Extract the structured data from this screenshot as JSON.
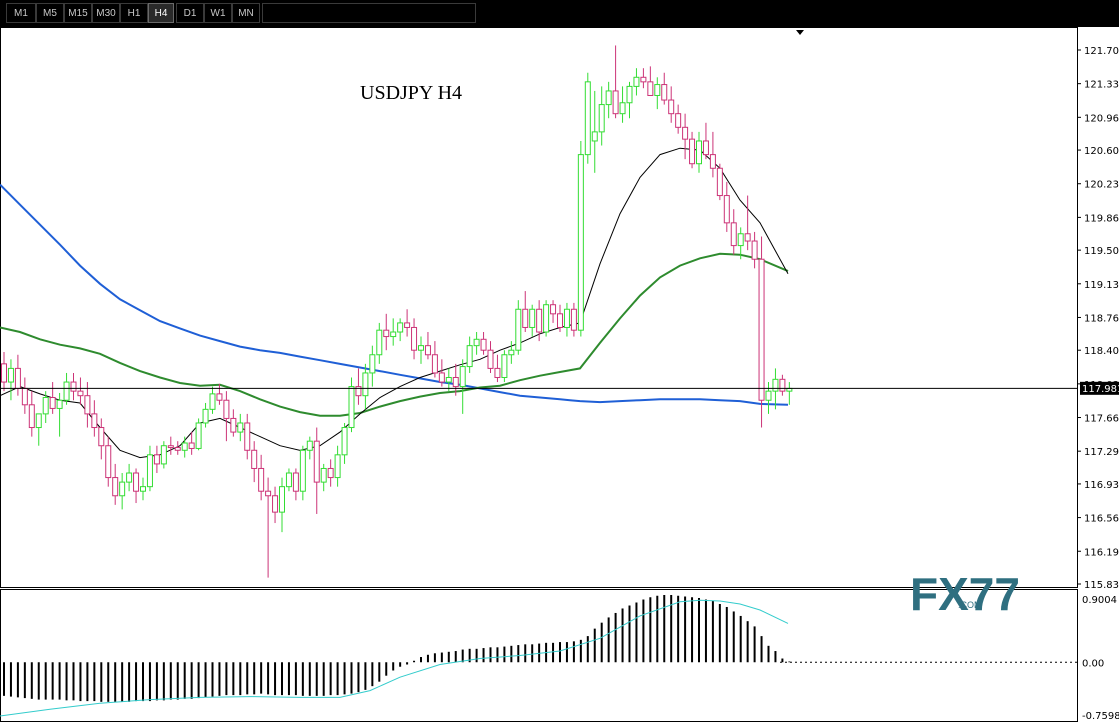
{
  "toolbar": {
    "timeframes": [
      "M1",
      "M5",
      "M15",
      "M30",
      "H1",
      "H4",
      "D1",
      "W1",
      "MN"
    ],
    "active": "H4"
  },
  "chart_data": {
    "type": "candlestick",
    "title": "USDJPY  H4",
    "symbol": "USDJPY",
    "timeframe": "H4",
    "current_price": 117.981,
    "price_label": "117.981",
    "ylim": [
      115.83,
      121.7
    ],
    "y_ticks": [
      "121.700",
      "121.330",
      "120.960",
      "120.600",
      "120.230",
      "119.860",
      "119.500",
      "119.130",
      "118.760",
      "118.400",
      "118.030",
      "117.660",
      "117.290",
      "116.930",
      "116.560",
      "116.190",
      "115.830"
    ],
    "colors": {
      "bull": "#33dd33",
      "bear": "#cc3377",
      "ma_slow": "#1f5fd6",
      "ma_mid": "#2e8b2e",
      "ma_fast": "#000000",
      "signal": "#33cccc",
      "hist": "#000000"
    },
    "candles": [
      [
        118.25,
        118.38,
        117.95,
        118.05
      ],
      [
        118.05,
        118.3,
        117.85,
        118.2
      ],
      [
        118.2,
        118.35,
        117.9,
        117.98
      ],
      [
        117.98,
        118.1,
        117.7,
        117.8
      ],
      [
        117.8,
        117.95,
        117.45,
        117.55
      ],
      [
        117.55,
        117.7,
        117.35,
        117.7
      ],
      [
        117.7,
        117.95,
        117.6,
        117.88
      ],
      [
        117.88,
        118.05,
        117.7,
        117.76
      ],
      [
        117.76,
        117.93,
        117.45,
        117.85
      ],
      [
        117.85,
        118.15,
        117.8,
        118.05
      ],
      [
        118.05,
        118.15,
        117.85,
        117.95
      ],
      [
        117.95,
        118.1,
        117.8,
        117.9
      ],
      [
        117.9,
        118.05,
        117.55,
        117.7
      ],
      [
        117.7,
        117.85,
        117.45,
        117.55
      ],
      [
        117.55,
        117.65,
        117.2,
        117.35
      ],
      [
        117.35,
        117.45,
        116.9,
        117.0
      ],
      [
        117.0,
        117.15,
        116.7,
        116.8
      ],
      [
        116.8,
        117.05,
        116.65,
        116.95
      ],
      [
        116.95,
        117.15,
        116.85,
        117.05
      ],
      [
        117.05,
        117.1,
        116.72,
        116.85
      ],
      [
        116.85,
        117.0,
        116.75,
        116.9
      ],
      [
        116.9,
        117.35,
        116.85,
        117.25
      ],
      [
        117.25,
        117.35,
        117.05,
        117.15
      ],
      [
        117.15,
        117.4,
        117.1,
        117.35
      ],
      [
        117.35,
        117.45,
        117.25,
        117.33
      ],
      [
        117.33,
        117.4,
        117.25,
        117.3
      ],
      [
        117.3,
        117.45,
        117.22,
        117.38
      ],
      [
        117.38,
        117.5,
        117.25,
        117.32
      ],
      [
        117.32,
        117.65,
        117.3,
        117.6
      ],
      [
        117.6,
        117.82,
        117.55,
        117.75
      ],
      [
        117.75,
        118.0,
        117.7,
        117.92
      ],
      [
        117.92,
        118.03,
        117.8,
        117.85
      ],
      [
        117.85,
        117.95,
        117.4,
        117.65
      ],
      [
        117.65,
        117.75,
        117.45,
        117.5
      ],
      [
        117.5,
        117.7,
        117.4,
        117.6
      ],
      [
        117.6,
        117.7,
        117.2,
        117.3
      ],
      [
        117.3,
        117.4,
        116.95,
        117.1
      ],
      [
        117.1,
        117.25,
        116.75,
        116.85
      ],
      [
        116.85,
        117.0,
        115.9,
        116.8
      ],
      [
        116.8,
        116.9,
        116.5,
        116.62
      ],
      [
        116.62,
        117.0,
        116.4,
        116.9
      ],
      [
        116.9,
        117.1,
        116.85,
        117.05
      ],
      [
        117.05,
        117.1,
        116.75,
        116.85
      ],
      [
        116.85,
        117.35,
        116.75,
        117.3
      ],
      [
        117.3,
        117.45,
        117.2,
        117.4
      ],
      [
        117.4,
        117.55,
        116.6,
        116.95
      ],
      [
        116.95,
        117.15,
        116.85,
        117.1
      ],
      [
        117.1,
        117.2,
        116.9,
        117.0
      ],
      [
        117.0,
        117.35,
        116.9,
        117.25
      ],
      [
        117.25,
        117.6,
        117.15,
        117.55
      ],
      [
        117.55,
        118.1,
        117.5,
        118.0
      ],
      [
        118.0,
        118.2,
        117.8,
        117.9
      ],
      [
        117.9,
        118.25,
        117.75,
        118.15
      ],
      [
        118.15,
        118.45,
        118.0,
        118.35
      ],
      [
        118.35,
        118.7,
        118.25,
        118.62
      ],
      [
        118.62,
        118.8,
        118.4,
        118.55
      ],
      [
        118.55,
        118.75,
        118.45,
        118.6
      ],
      [
        118.6,
        118.75,
        118.5,
        118.7
      ],
      [
        118.7,
        118.85,
        118.55,
        118.65
      ],
      [
        118.65,
        118.75,
        118.3,
        118.4
      ],
      [
        118.4,
        118.55,
        118.25,
        118.45
      ],
      [
        118.45,
        118.6,
        118.3,
        118.35
      ],
      [
        118.35,
        118.5,
        118.1,
        118.15
      ],
      [
        118.15,
        118.3,
        118.0,
        118.05
      ],
      [
        118.05,
        118.2,
        117.95,
        118.1
      ],
      [
        118.1,
        118.25,
        117.9,
        118.0
      ],
      [
        118.0,
        118.3,
        117.7,
        118.22
      ],
      [
        118.22,
        118.55,
        118.15,
        118.45
      ],
      [
        118.45,
        118.6,
        118.35,
        118.52
      ],
      [
        118.52,
        118.6,
        118.35,
        118.4
      ],
      [
        118.4,
        118.5,
        118.15,
        118.2
      ],
      [
        118.2,
        118.35,
        118.05,
        118.1
      ],
      [
        118.1,
        118.4,
        118.05,
        118.35
      ],
      [
        118.35,
        118.5,
        118.25,
        118.4
      ],
      [
        118.4,
        118.95,
        118.35,
        118.85
      ],
      [
        118.85,
        119.05,
        118.6,
        118.65
      ],
      [
        118.65,
        118.9,
        118.55,
        118.85
      ],
      [
        118.85,
        118.95,
        118.5,
        118.6
      ],
      [
        118.6,
        118.95,
        118.55,
        118.9
      ],
      [
        118.9,
        118.95,
        118.7,
        118.8
      ],
      [
        118.8,
        118.9,
        118.6,
        118.65
      ],
      [
        118.65,
        118.92,
        118.55,
        118.85
      ],
      [
        118.85,
        118.92,
        118.55,
        118.62
      ],
      [
        118.62,
        120.7,
        118.55,
        120.55
      ],
      [
        120.55,
        121.45,
        120.45,
        121.35
      ],
      [
        120.7,
        121.25,
        120.35,
        120.8
      ],
      [
        120.8,
        121.3,
        120.65,
        121.1
      ],
      [
        121.1,
        121.35,
        120.95,
        121.25
      ],
      [
        121.25,
        121.75,
        120.95,
        121.0
      ],
      [
        121.0,
        121.3,
        120.9,
        121.12
      ],
      [
        121.12,
        121.35,
        120.95,
        121.3
      ],
      [
        121.3,
        121.5,
        121.2,
        121.4
      ],
      [
        121.4,
        121.5,
        121.28,
        121.35
      ],
      [
        121.35,
        121.52,
        121.2,
        121.2
      ],
      [
        121.2,
        121.4,
        121.05,
        121.32
      ],
      [
        121.32,
        121.45,
        121.1,
        121.15
      ],
      [
        121.15,
        121.3,
        120.9,
        121.0
      ],
      [
        121.0,
        121.1,
        120.78,
        120.85
      ],
      [
        120.85,
        121.0,
        120.5,
        120.72
      ],
      [
        120.72,
        120.8,
        120.4,
        120.45
      ],
      [
        120.45,
        120.8,
        120.35,
        120.7
      ],
      [
        120.7,
        120.9,
        120.5,
        120.55
      ],
      [
        120.55,
        120.8,
        120.3,
        120.4
      ],
      [
        120.4,
        120.45,
        120.05,
        120.1
      ],
      [
        120.1,
        120.25,
        119.7,
        119.8
      ],
      [
        119.8,
        119.95,
        119.45,
        119.55
      ],
      [
        119.55,
        119.75,
        119.4,
        119.68
      ],
      [
        119.68,
        120.1,
        119.5,
        119.6
      ],
      [
        119.6,
        119.7,
        119.3,
        119.4
      ],
      [
        119.4,
        119.65,
        117.55,
        117.85
      ],
      [
        117.85,
        118.05,
        117.7,
        117.95
      ],
      [
        117.95,
        118.2,
        117.75,
        118.08
      ],
      [
        118.08,
        118.13,
        117.9,
        117.95
      ],
      [
        117.95,
        118.05,
        117.8,
        117.98
      ]
    ],
    "ma_slow": [
      [
        0,
        120.22
      ],
      [
        20,
        120.0
      ],
      [
        40,
        119.78
      ],
      [
        60,
        119.56
      ],
      [
        80,
        119.33
      ],
      [
        100,
        119.13
      ],
      [
        120,
        118.96
      ],
      [
        140,
        118.84
      ],
      [
        160,
        118.72
      ],
      [
        180,
        118.64
      ],
      [
        200,
        118.56
      ],
      [
        220,
        118.5
      ],
      [
        240,
        118.44
      ],
      [
        260,
        118.4
      ],
      [
        280,
        118.37
      ],
      [
        300,
        118.33
      ],
      [
        320,
        118.29
      ],
      [
        340,
        118.25
      ],
      [
        360,
        118.21
      ],
      [
        380,
        118.17
      ],
      [
        400,
        118.13
      ],
      [
        420,
        118.09
      ],
      [
        440,
        118.05
      ],
      [
        460,
        118.02
      ],
      [
        480,
        117.98
      ],
      [
        500,
        117.94
      ],
      [
        520,
        117.9
      ],
      [
        540,
        117.88
      ],
      [
        560,
        117.86
      ],
      [
        570,
        117.85
      ],
      [
        580,
        117.84
      ],
      [
        600,
        117.83
      ],
      [
        620,
        117.84
      ],
      [
        640,
        117.85
      ],
      [
        660,
        117.86
      ],
      [
        680,
        117.86
      ],
      [
        700,
        117.86
      ],
      [
        720,
        117.85
      ],
      [
        740,
        117.84
      ],
      [
        760,
        117.81
      ],
      [
        788,
        117.8
      ]
    ],
    "ma_mid": [
      [
        0,
        118.65
      ],
      [
        20,
        118.6
      ],
      [
        40,
        118.52
      ],
      [
        60,
        118.46
      ],
      [
        80,
        118.42
      ],
      [
        100,
        118.36
      ],
      [
        120,
        118.26
      ],
      [
        140,
        118.17
      ],
      [
        160,
        118.1
      ],
      [
        180,
        118.04
      ],
      [
        200,
        118.01
      ],
      [
        220,
        118.02
      ],
      [
        240,
        117.95
      ],
      [
        260,
        117.86
      ],
      [
        280,
        117.78
      ],
      [
        300,
        117.72
      ],
      [
        320,
        117.68
      ],
      [
        340,
        117.68
      ],
      [
        360,
        117.71
      ],
      [
        380,
        117.78
      ],
      [
        400,
        117.84
      ],
      [
        420,
        117.89
      ],
      [
        440,
        117.93
      ],
      [
        460,
        117.95
      ],
      [
        480,
        117.99
      ],
      [
        500,
        118.01
      ],
      [
        520,
        118.07
      ],
      [
        540,
        118.12
      ],
      [
        560,
        118.16
      ],
      [
        580,
        118.2
      ],
      [
        600,
        118.48
      ],
      [
        620,
        118.75
      ],
      [
        640,
        119.0
      ],
      [
        660,
        119.2
      ],
      [
        680,
        119.33
      ],
      [
        700,
        119.41
      ],
      [
        720,
        119.46
      ],
      [
        740,
        119.45
      ],
      [
        760,
        119.4
      ],
      [
        788,
        119.27
      ]
    ],
    "ma_fast": [
      [
        0,
        117.9
      ],
      [
        20,
        118.0
      ],
      [
        40,
        117.92
      ],
      [
        60,
        117.85
      ],
      [
        80,
        117.82
      ],
      [
        100,
        117.55
      ],
      [
        120,
        117.3
      ],
      [
        140,
        117.22
      ],
      [
        160,
        117.25
      ],
      [
        180,
        117.35
      ],
      [
        200,
        117.6
      ],
      [
        220,
        117.65
      ],
      [
        240,
        117.55
      ],
      [
        260,
        117.45
      ],
      [
        280,
        117.35
      ],
      [
        300,
        117.3
      ],
      [
        320,
        117.35
      ],
      [
        340,
        117.5
      ],
      [
        360,
        117.7
      ],
      [
        380,
        117.88
      ],
      [
        400,
        118.0
      ],
      [
        420,
        118.1
      ],
      [
        440,
        118.17
      ],
      [
        460,
        118.24
      ],
      [
        480,
        118.3
      ],
      [
        500,
        118.4
      ],
      [
        520,
        118.48
      ],
      [
        540,
        118.58
      ],
      [
        560,
        118.65
      ],
      [
        580,
        118.7
      ],
      [
        600,
        119.35
      ],
      [
        620,
        119.9
      ],
      [
        640,
        120.3
      ],
      [
        660,
        120.55
      ],
      [
        680,
        120.62
      ],
      [
        700,
        120.6
      ],
      [
        720,
        120.4
      ],
      [
        740,
        120.05
      ],
      [
        760,
        119.8
      ],
      [
        788,
        119.24
      ]
    ]
  },
  "indicator": {
    "ylim": [
      -0.7598,
      0.9004
    ],
    "ticks": [
      "0.9004",
      "0.00",
      "-0.7598"
    ],
    "histogram": [
      -0.45,
      -0.46,
      -0.47,
      -0.48,
      -0.49,
      -0.5,
      -0.5,
      -0.5,
      -0.5,
      -0.51,
      -0.51,
      -0.52,
      -0.52,
      -0.52,
      -0.53,
      -0.53,
      -0.53,
      -0.53,
      -0.53,
      -0.52,
      -0.52,
      -0.52,
      -0.51,
      -0.51,
      -0.5,
      -0.5,
      -0.49,
      -0.49,
      -0.48,
      -0.47,
      -0.46,
      -0.45,
      -0.44,
      -0.44,
      -0.44,
      -0.43,
      -0.43,
      -0.42,
      -0.43,
      -0.44,
      -0.44,
      -0.44,
      -0.44,
      -0.45,
      -0.45,
      -0.45,
      -0.45,
      -0.44,
      -0.44,
      -0.43,
      -0.42,
      -0.4,
      -0.37,
      -0.32,
      -0.26,
      -0.18,
      -0.11,
      -0.06,
      -0.03,
      0.02,
      0.07,
      0.1,
      0.12,
      0.13,
      0.14,
      0.15,
      0.17,
      0.18,
      0.18,
      0.19,
      0.2,
      0.2,
      0.21,
      0.22,
      0.23,
      0.24,
      0.24,
      0.25,
      0.26,
      0.26,
      0.27,
      0.27,
      0.28,
      0.3,
      0.35,
      0.45,
      0.53,
      0.6,
      0.66,
      0.72,
      0.76,
      0.8,
      0.84,
      0.87,
      0.89,
      0.9,
      0.9,
      0.89,
      0.88,
      0.87,
      0.86,
      0.84,
      0.82,
      0.78,
      0.74,
      0.68,
      0.62,
      0.55,
      0.48,
      0.35,
      0.22,
      0.15,
      0.05,
      0.01
    ],
    "signal": [
      [
        0,
        -0.72
      ],
      [
        50,
        -0.63
      ],
      [
        100,
        -0.55
      ],
      [
        150,
        -0.5
      ],
      [
        200,
        -0.47
      ],
      [
        250,
        -0.46
      ],
      [
        300,
        -0.47
      ],
      [
        340,
        -0.47
      ],
      [
        370,
        -0.38
      ],
      [
        400,
        -0.2
      ],
      [
        440,
        -0.03
      ],
      [
        480,
        0.05
      ],
      [
        520,
        0.09
      ],
      [
        560,
        0.15
      ],
      [
        600,
        0.32
      ],
      [
        640,
        0.62
      ],
      [
        680,
        0.81
      ],
      [
        700,
        0.83
      ],
      [
        720,
        0.82
      ],
      [
        740,
        0.78
      ],
      [
        760,
        0.7
      ],
      [
        788,
        0.52
      ]
    ]
  },
  "watermark": {
    "brand": "FX77",
    "sub": ".COM"
  }
}
